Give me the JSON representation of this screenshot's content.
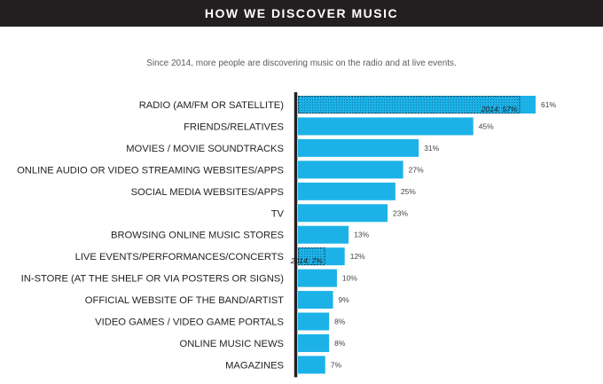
{
  "header": {
    "title": "HOW WE DISCOVER MUSIC"
  },
  "subtitle": "Since 2014, more people are discovering music on the radio and at live events.",
  "colors": {
    "bar": "#1cb2e8",
    "header_bg": "#231f20",
    "axis": "#231f20",
    "hatch": "#0b5f86"
  },
  "chart_data": {
    "type": "bar",
    "orientation": "horizontal",
    "title": "HOW WE DISCOVER MUSIC",
    "subtitle": "Since 2014, more people are discovering music on the radio and at live events.",
    "categories": [
      "RADIO (AM/FM OR SATELLITE)",
      "FRIENDS/RELATIVES",
      "MOVIES / MOVIE SOUNDTRACKS",
      "ONLINE AUDIO OR VIDEO STREAMING WEBSITES/APPS",
      "SOCIAL MEDIA WEBSITES/APPS",
      "TV",
      "BROWSING ONLINE MUSIC STORES",
      "LIVE EVENTS/PERFORMANCES/CONCERTS",
      "IN-STORE (AT THE SHELF OR VIA POSTERS OR SIGNS)",
      "OFFICIAL WEBSITE OF THE BAND/ARTIST",
      "VIDEO GAMES / VIDEO GAME PORTALS",
      "ONLINE MUSIC NEWS",
      "MAGAZINES"
    ],
    "values": [
      61,
      45,
      31,
      27,
      25,
      23,
      13,
      12,
      10,
      9,
      8,
      8,
      7
    ],
    "value_labels": [
      "61%",
      "45%",
      "31%",
      "27%",
      "25%",
      "23%",
      "13%",
      "12%",
      "10%",
      "9%",
      "8%",
      "8%",
      "7%"
    ],
    "comparison_2014": [
      {
        "category": "RADIO (AM/FM OR SATELLITE)",
        "value": 57,
        "label": "2014: 57%"
      },
      {
        "category": "LIVE EVENTS/PERFORMANCES/CONCERTS",
        "value": 7,
        "label": "2014: 7%"
      }
    ],
    "unit": "%",
    "xlim": [
      0,
      61
    ],
    "grid": false
  }
}
